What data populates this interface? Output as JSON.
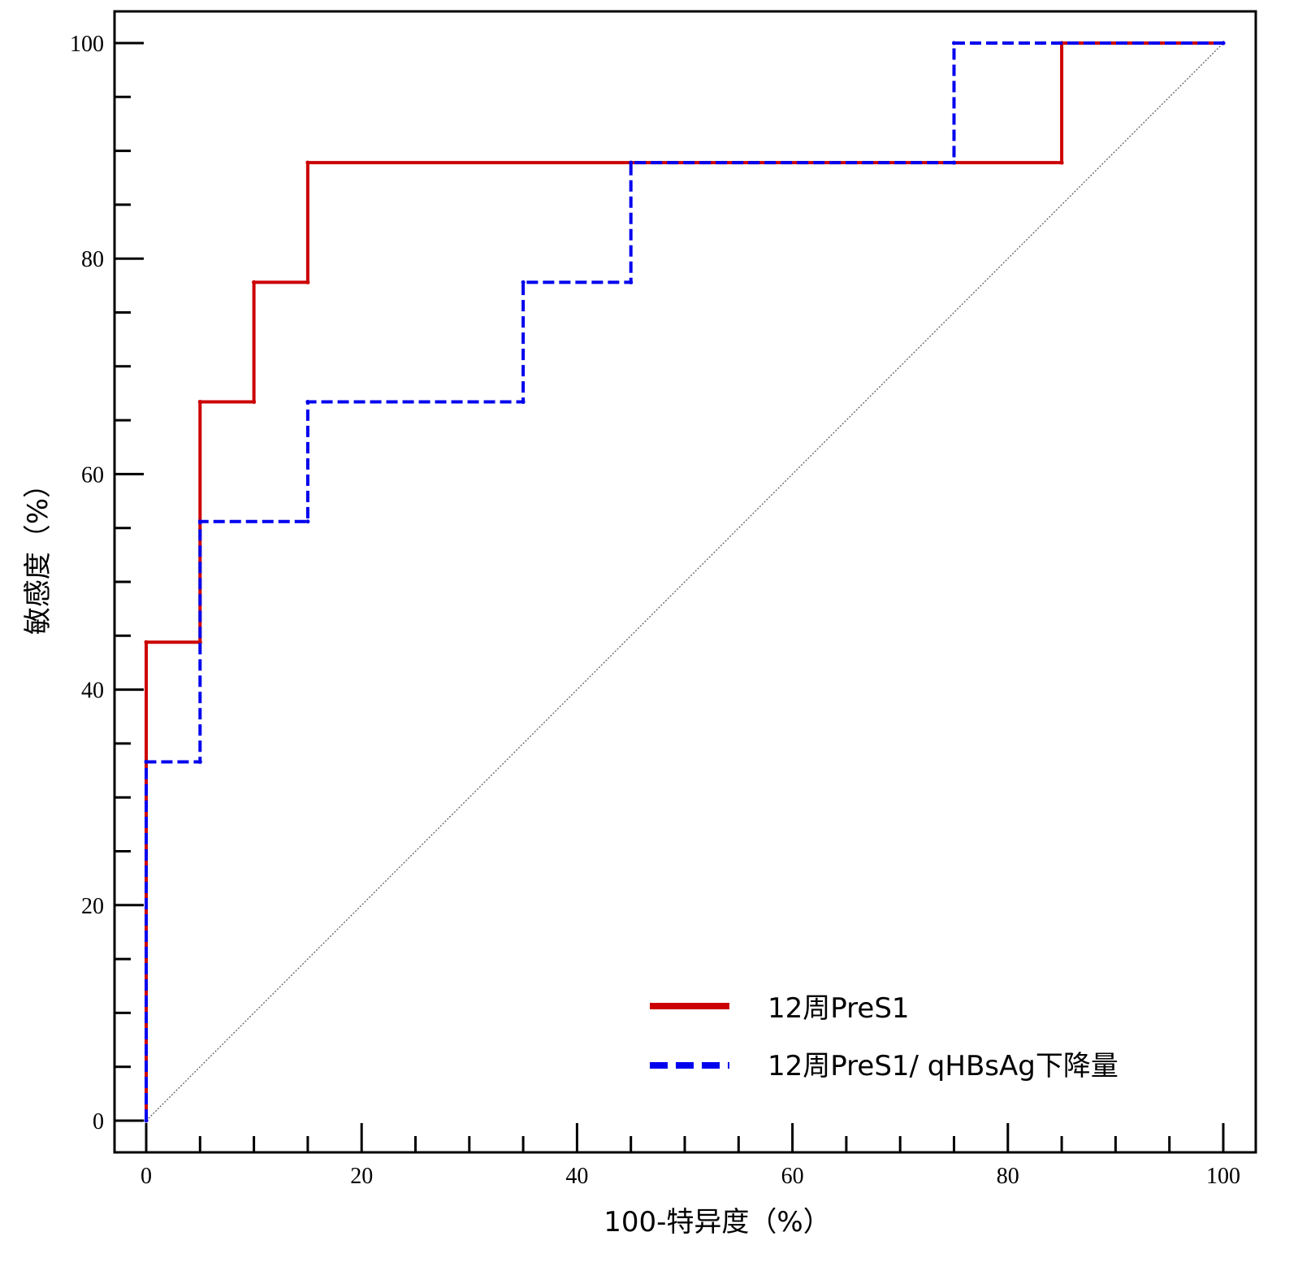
{
  "chart_data": {
    "type": "line",
    "title": "",
    "xlabel": "100-特异度（%）",
    "ylabel": "敏感度（%）",
    "xlim": [
      0,
      100
    ],
    "ylim": [
      0,
      100
    ],
    "xticks": [
      0,
      20,
      40,
      60,
      80,
      100
    ],
    "yticks": [
      0,
      20,
      40,
      60,
      80,
      100
    ],
    "minor_tick_step": 5,
    "grid": false,
    "legend_position": "bottom-right",
    "series": [
      {
        "name": "12周PreS1",
        "color": "#cc0000",
        "style": "solid",
        "x": [
          0,
          0,
          5,
          5,
          10,
          10,
          15,
          15,
          85,
          85,
          100
        ],
        "y": [
          0,
          44.4,
          44.4,
          66.7,
          66.7,
          77.8,
          77.8,
          88.9,
          88.9,
          100,
          100
        ]
      },
      {
        "name": "12周PreS1/ qHBsAg下降量",
        "color": "#0000ee",
        "style": "dashed",
        "x": [
          0,
          0,
          5,
          5,
          15,
          15,
          35,
          35,
          45,
          45,
          75,
          75,
          100
        ],
        "y": [
          0,
          33.3,
          33.3,
          55.6,
          55.6,
          66.7,
          66.7,
          77.8,
          77.8,
          88.9,
          88.9,
          100,
          100
        ]
      },
      {
        "name": "reference",
        "color": "#555555",
        "style": "dotted",
        "x": [
          0,
          100
        ],
        "y": [
          0,
          100
        ]
      }
    ]
  }
}
